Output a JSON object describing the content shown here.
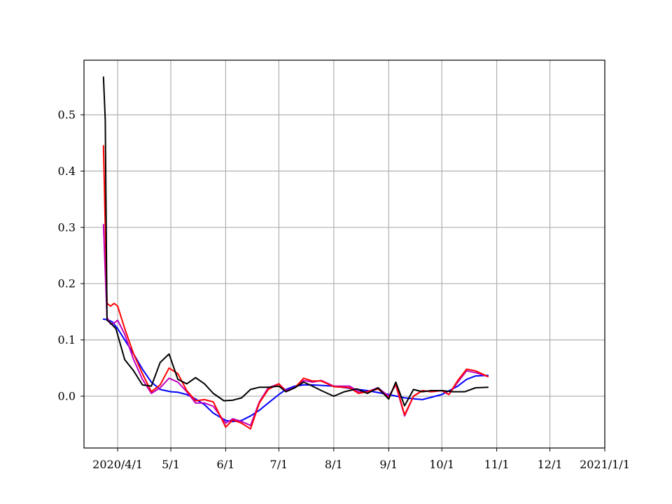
{
  "chart_data": {
    "type": "line",
    "title": "",
    "xlabel": "",
    "ylabel": "",
    "x_axis_type": "date",
    "xlim": [
      "2020-03-13",
      "2021-01-01"
    ],
    "ylim": [
      -0.092,
      0.597
    ],
    "grid": true,
    "legend": "none",
    "x_ticks": [
      {
        "date": "2020-04-01",
        "label": "2020/4/1"
      },
      {
        "date": "2020-05-01",
        "label": "5/1"
      },
      {
        "date": "2020-06-01",
        "label": "6/1"
      },
      {
        "date": "2020-07-01",
        "label": "7/1"
      },
      {
        "date": "2020-08-01",
        "label": "8/1"
      },
      {
        "date": "2020-09-01",
        "label": "9/1"
      },
      {
        "date": "2020-10-01",
        "label": "10/1"
      },
      {
        "date": "2020-11-01",
        "label": "11/1"
      },
      {
        "date": "2020-12-01",
        "label": "12/1"
      },
      {
        "date": "2021-01-01",
        "label": "2021/1/1"
      }
    ],
    "y_ticks": [
      {
        "value": 0.0,
        "label": "0.0"
      },
      {
        "value": 0.1,
        "label": "0.1"
      },
      {
        "value": 0.2,
        "label": "0.2"
      },
      {
        "value": 0.3,
        "label": "0.3"
      },
      {
        "value": 0.4,
        "label": "0.4"
      },
      {
        "value": 0.5,
        "label": "0.5"
      }
    ],
    "series": [
      {
        "color": "#0000ff",
        "x": [
          "2020-03-24",
          "2020-03-26",
          "2020-03-27",
          "2020-03-29",
          "2020-04-01",
          "2020-04-05",
          "2020-04-10",
          "2020-04-15",
          "2020-04-20",
          "2020-04-25",
          "2020-05-01",
          "2020-05-05",
          "2020-05-10",
          "2020-05-15",
          "2020-05-20",
          "2020-05-25",
          "2020-06-01",
          "2020-06-05",
          "2020-06-10",
          "2020-06-15",
          "2020-06-20",
          "2020-06-25",
          "2020-07-01",
          "2020-07-05",
          "2020-07-10",
          "2020-07-15",
          "2020-07-20",
          "2020-08-01",
          "2020-08-10",
          "2020-08-20",
          "2020-09-01",
          "2020-09-10",
          "2020-09-20",
          "2020-10-01",
          "2020-10-10",
          "2020-10-15",
          "2020-10-20",
          "2020-10-27"
        ],
        "y": [
          0.137,
          0.136,
          0.135,
          0.132,
          0.12,
          0.1,
          0.075,
          0.048,
          0.025,
          0.012,
          0.008,
          0.007,
          0.003,
          -0.005,
          -0.015,
          -0.03,
          -0.043,
          -0.045,
          -0.043,
          -0.035,
          -0.025,
          -0.012,
          0.003,
          0.012,
          0.018,
          0.02,
          0.02,
          0.018,
          0.014,
          0.01,
          0.003,
          -0.003,
          -0.006,
          0.003,
          0.018,
          0.03,
          0.036,
          0.037
        ]
      },
      {
        "color": "#bf00bf",
        "x": [
          "2020-03-24",
          "2020-03-25",
          "2020-03-26",
          "2020-03-28",
          "2020-03-30",
          "2020-04-01",
          "2020-04-05",
          "2020-04-10",
          "2020-04-15",
          "2020-04-20",
          "2020-04-25",
          "2020-04-30",
          "2020-05-05",
          "2020-05-10",
          "2020-05-15",
          "2020-05-20",
          "2020-05-25",
          "2020-06-01",
          "2020-06-05",
          "2020-06-10",
          "2020-06-15",
          "2020-06-20",
          "2020-06-25",
          "2020-07-01",
          "2020-07-05",
          "2020-07-10",
          "2020-07-15",
          "2020-07-20",
          "2020-07-25",
          "2020-08-01",
          "2020-08-10",
          "2020-08-15",
          "2020-08-20",
          "2020-08-26",
          "2020-09-01",
          "2020-09-05",
          "2020-09-10",
          "2020-09-15",
          "2020-09-20",
          "2020-09-25",
          "2020-10-01",
          "2020-10-05",
          "2020-10-10",
          "2020-10-15",
          "2020-10-20",
          "2020-10-27"
        ],
        "y": [
          0.305,
          0.22,
          0.14,
          0.128,
          0.13,
          0.135,
          0.11,
          0.065,
          0.03,
          0.005,
          0.015,
          0.032,
          0.025,
          0.008,
          -0.012,
          -0.012,
          -0.018,
          -0.048,
          -0.04,
          -0.045,
          -0.052,
          -0.01,
          0.015,
          0.022,
          0.01,
          0.015,
          0.028,
          0.025,
          0.028,
          0.018,
          0.018,
          0.008,
          0.008,
          0.015,
          0.0,
          0.02,
          -0.035,
          0.0,
          0.01,
          0.008,
          0.01,
          0.003,
          0.025,
          0.045,
          0.042,
          0.035
        ]
      },
      {
        "color": "#ff0000",
        "x": [
          "2020-03-24",
          "2020-03-25",
          "2020-03-26",
          "2020-03-28",
          "2020-03-30",
          "2020-04-01",
          "2020-04-05",
          "2020-04-10",
          "2020-04-15",
          "2020-04-20",
          "2020-04-25",
          "2020-04-30",
          "2020-05-05",
          "2020-05-10",
          "2020-05-15",
          "2020-05-20",
          "2020-05-25",
          "2020-06-01",
          "2020-06-05",
          "2020-06-10",
          "2020-06-15",
          "2020-06-20",
          "2020-06-25",
          "2020-07-01",
          "2020-07-05",
          "2020-07-10",
          "2020-07-15",
          "2020-07-20",
          "2020-07-25",
          "2020-08-01",
          "2020-08-10",
          "2020-08-15",
          "2020-08-20",
          "2020-08-26",
          "2020-09-01",
          "2020-09-05",
          "2020-09-10",
          "2020-09-15",
          "2020-09-20",
          "2020-09-25",
          "2020-10-01",
          "2020-10-05",
          "2020-10-10",
          "2020-10-15",
          "2020-10-20",
          "2020-10-27"
        ],
        "y": [
          0.445,
          0.3,
          0.165,
          0.16,
          0.165,
          0.16,
          0.12,
          0.075,
          0.04,
          0.008,
          0.02,
          0.05,
          0.04,
          0.01,
          -0.008,
          -0.006,
          -0.01,
          -0.055,
          -0.042,
          -0.048,
          -0.058,
          -0.012,
          0.012,
          0.022,
          0.008,
          0.015,
          0.032,
          0.027,
          0.027,
          0.017,
          0.015,
          0.005,
          0.008,
          0.013,
          -0.003,
          0.022,
          -0.033,
          0.0,
          0.01,
          0.008,
          0.01,
          0.003,
          0.028,
          0.048,
          0.045,
          0.035
        ]
      },
      {
        "color": "#000000",
        "x": [
          "2020-03-24",
          "2020-03-25",
          "2020-03-26",
          "2020-03-28",
          "2020-03-31",
          "2020-04-05",
          "2020-04-10",
          "2020-04-15",
          "2020-04-20",
          "2020-04-25",
          "2020-04-30",
          "2020-05-05",
          "2020-05-10",
          "2020-05-15",
          "2020-05-20",
          "2020-05-25",
          "2020-05-31",
          "2020-06-05",
          "2020-06-10",
          "2020-06-15",
          "2020-06-20",
          "2020-06-25",
          "2020-07-01",
          "2020-07-05",
          "2020-07-10",
          "2020-07-15",
          "2020-07-20",
          "2020-07-25",
          "2020-08-01",
          "2020-08-07",
          "2020-08-14",
          "2020-08-20",
          "2020-08-26",
          "2020-09-01",
          "2020-09-05",
          "2020-09-10",
          "2020-09-15",
          "2020-09-20",
          "2020-09-25",
          "2020-10-01",
          "2020-10-07",
          "2020-10-14",
          "2020-10-20",
          "2020-10-27"
        ],
        "y": [
          0.567,
          0.49,
          0.135,
          0.13,
          0.12,
          0.065,
          0.045,
          0.02,
          0.018,
          0.06,
          0.075,
          0.03,
          0.022,
          0.033,
          0.022,
          0.005,
          -0.008,
          -0.007,
          -0.003,
          0.012,
          0.016,
          0.016,
          0.018,
          0.008,
          0.015,
          0.025,
          0.018,
          0.01,
          0.0,
          0.008,
          0.013,
          0.005,
          0.015,
          -0.005,
          0.025,
          -0.017,
          0.012,
          0.008,
          0.01,
          0.01,
          0.008,
          0.008,
          0.015,
          0.016
        ]
      }
    ]
  }
}
